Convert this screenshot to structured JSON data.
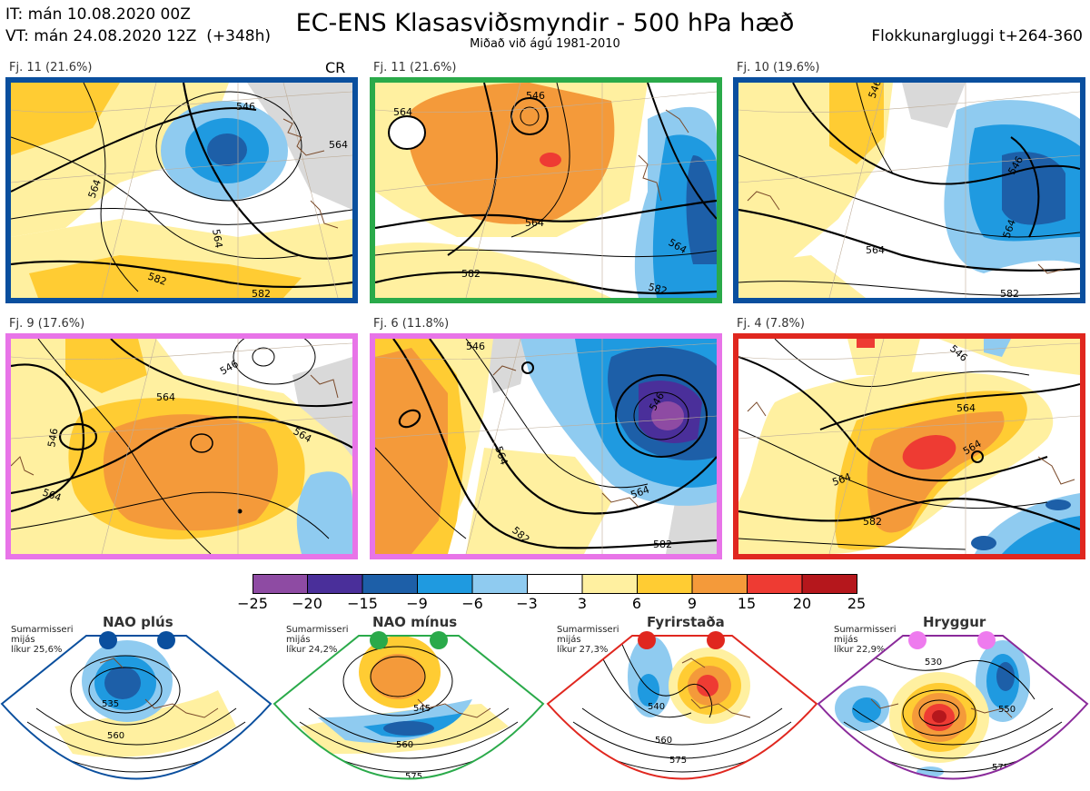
{
  "header": {
    "init_time": "IT: mán 10.08.2020 00Z",
    "valid_time": "VT: mán 24.08.2020 12Z  (+348h)",
    "title": "EC-ENS Klasasviðsmyndir - 500 hPa hæð",
    "subtitle": "Miðað við ágú 1981-2010",
    "window": "Flokkunargluggi t+264-360"
  },
  "colors": {
    "blue_regime": "#0a4f9e",
    "green_regime": "#2aaa4a",
    "pink_regime": "#e874e8",
    "red_regime": "#e0271f",
    "purple_regime": "#8a2a9a",
    "land": "#d9d9d9",
    "coast": "#7a4a2a"
  },
  "clusters": [
    {
      "label": "Fj. 11 (21.6%)",
      "marker": "CR",
      "frame_color": "#0a4f9e"
    },
    {
      "label": "Fj. 11 (21.6%)",
      "marker": "",
      "frame_color": "#2aaa4a"
    },
    {
      "label": "Fj. 10 (19.6%)",
      "marker": "",
      "frame_color": "#0a4f9e"
    },
    {
      "label": "Fj. 9 (17.6%)",
      "marker": "",
      "frame_color": "#e874e8"
    },
    {
      "label": "Fj. 6 (11.8%)",
      "marker": "",
      "frame_color": "#e874e8"
    },
    {
      "label": "Fj. 4 (7.8%)",
      "marker": "",
      "frame_color": "#e0271f"
    }
  ],
  "colorbar": {
    "ticks": [
      "−25",
      "−20",
      "−15",
      "−9",
      "−6",
      "−3",
      "3",
      "6",
      "9",
      "15",
      "20",
      "25"
    ],
    "colors": [
      "#8e4ba3",
      "#4a2f9a",
      "#1d5fa8",
      "#1f9ae0",
      "#8fcbf0",
      "#ffffff",
      "#fff0a0",
      "#ffcc33",
      "#f49a3a",
      "#ee3b33",
      "#b5171c"
    ]
  },
  "regimes": [
    {
      "name": "NAO plús",
      "note": "Sumarmisseri\nmijás\nlíkur 25,6%",
      "marker_color": "#0a4f9e",
      "frame_color": "#0a4f9e",
      "contours": [
        "535",
        "560"
      ]
    },
    {
      "name": "NAO mínus",
      "note": "Sumarmisseri\nmijás\nlíkur 24,2%",
      "marker_color": "#2aaa4a",
      "frame_color": "#2aaa4a",
      "contours": [
        "545",
        "560",
        "575"
      ]
    },
    {
      "name": "Fyrirstaða",
      "note": "Sumarmisseri\nmijás\nlíkur 27,3%",
      "marker_color": "#e0271f",
      "frame_color": "#e0271f",
      "contours": [
        "540",
        "560",
        "575"
      ]
    },
    {
      "name": "Hryggur",
      "note": "Sumarmisseri\nmijás\nlíkur 22,9%",
      "marker_color": "#ee7bee",
      "frame_color": "#8a2a9a",
      "contours": [
        "530",
        "550",
        "575"
      ]
    }
  ],
  "panel_contours": [
    [
      "564",
      "546",
      "564",
      "564",
      "582",
      "582"
    ],
    [
      "546",
      "564",
      "564",
      "564",
      "582",
      "582"
    ],
    [
      "546",
      "546",
      "564",
      "564",
      "582"
    ],
    [
      "546",
      "546",
      "564",
      "564",
      "564"
    ],
    [
      "546",
      "546",
      "564",
      "564",
      "582",
      "582"
    ],
    [
      "546",
      "564",
      "564",
      "564",
      "582"
    ]
  ]
}
